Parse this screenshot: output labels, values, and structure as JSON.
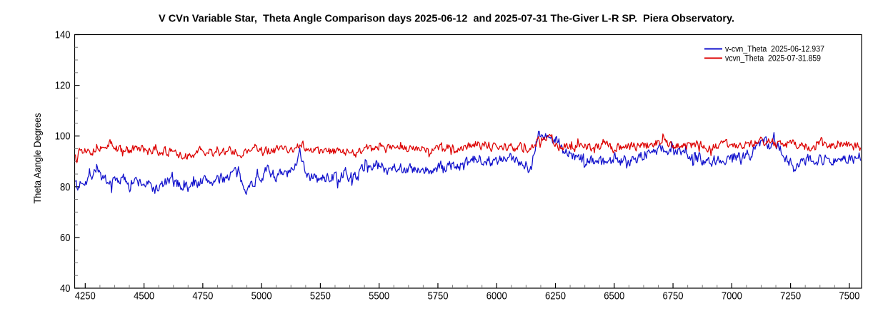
{
  "chart_data": {
    "type": "line",
    "title": "V CVn Variable Star,  Theta Angle Comparison days 2025-06-12  and 2025-07-31 The-Giver L-R SP.  Piera Observatory.",
    "ylabel": "Theta Aangle Degrees",
    "xlabel": "",
    "xlim": [
      4205,
      7552
    ],
    "ylim": [
      40,
      140
    ],
    "x_major_ticks": [
      4250,
      4500,
      4750,
      5000,
      5250,
      5500,
      5750,
      6000,
      6250,
      6500,
      6750,
      7000,
      7250,
      7500
    ],
    "y_major_ticks": [
      40,
      60,
      80,
      100,
      120,
      140
    ],
    "x_minor_step": 62.5,
    "y_minor_step": 5,
    "grid": false,
    "legend_position": "top-right",
    "axis_color": "#000000",
    "minor_tick_color": "#777777",
    "series": [
      {
        "name": "v-cvn_Theta  2025-06-12.937",
        "color": "#1111cc",
        "noise_amp": 2.0,
        "noise_phi": 0.45,
        "seed": 7,
        "x_start": 4208,
        "x_end": 7548,
        "x_step": 3.35,
        "trend": [
          [
            4208,
            84
          ],
          [
            4216,
            78
          ],
          [
            4232,
            82.5
          ],
          [
            4258,
            83
          ],
          [
            4280,
            85
          ],
          [
            4302,
            88.5
          ],
          [
            4318,
            84
          ],
          [
            4342,
            79.5
          ],
          [
            4365,
            82.5
          ],
          [
            4400,
            83
          ],
          [
            4460,
            82
          ],
          [
            4510,
            81
          ],
          [
            4555,
            79
          ],
          [
            4600,
            82
          ],
          [
            4650,
            81
          ],
          [
            4690,
            79.5
          ],
          [
            4730,
            82
          ],
          [
            4770,
            82.5
          ],
          [
            4810,
            82
          ],
          [
            4850,
            84
          ],
          [
            4885,
            86
          ],
          [
            4912,
            82
          ],
          [
            4945,
            79.5
          ],
          [
            4975,
            83
          ],
          [
            5005,
            85
          ],
          [
            5030,
            86.5
          ],
          [
            5065,
            84
          ],
          [
            5105,
            85
          ],
          [
            5140,
            86
          ],
          [
            5162,
            96.5
          ],
          [
            5180,
            87.5
          ],
          [
            5205,
            84
          ],
          [
            5245,
            82.5
          ],
          [
            5285,
            84
          ],
          [
            5330,
            83.5
          ],
          [
            5375,
            84
          ],
          [
            5415,
            85
          ],
          [
            5445,
            89.5
          ],
          [
            5470,
            88
          ],
          [
            5500,
            88.5
          ],
          [
            5530,
            87
          ],
          [
            5560,
            88.5
          ],
          [
            5590,
            87.5
          ],
          [
            5625,
            87
          ],
          [
            5680,
            85.5
          ],
          [
            5745,
            87
          ],
          [
            5805,
            88.5
          ],
          [
            5860,
            88
          ],
          [
            5910,
            90.5
          ],
          [
            5952,
            91.5
          ],
          [
            5990,
            89.5
          ],
          [
            6035,
            90.5
          ],
          [
            6080,
            91
          ],
          [
            6105,
            90.5
          ],
          [
            6125,
            89
          ],
          [
            6140,
            85.5
          ],
          [
            6152,
            90
          ],
          [
            6165,
            97
          ],
          [
            6180,
            102
          ],
          [
            6195,
            99
          ],
          [
            6210,
            100.5
          ],
          [
            6228,
            98
          ],
          [
            6248,
            99.5
          ],
          [
            6268,
            97
          ],
          [
            6290,
            94
          ],
          [
            6320,
            92.5
          ],
          [
            6355,
            90.5
          ],
          [
            6405,
            91
          ],
          [
            6455,
            89.5
          ],
          [
            6505,
            91
          ],
          [
            6555,
            90.5
          ],
          [
            6605,
            92
          ],
          [
            6655,
            93.5
          ],
          [
            6685,
            94.5
          ],
          [
            6710,
            95.5
          ],
          [
            6735,
            93.5
          ],
          [
            6780,
            93.5
          ],
          [
            6825,
            91.5
          ],
          [
            6870,
            91
          ],
          [
            6915,
            90.5
          ],
          [
            6960,
            91
          ],
          [
            7005,
            92
          ],
          [
            7045,
            91
          ],
          [
            7085,
            93.5
          ],
          [
            7110,
            95.5
          ],
          [
            7125,
            97
          ],
          [
            7142,
            100.5
          ],
          [
            7158,
            95.5
          ],
          [
            7175,
            98
          ],
          [
            7195,
            96.5
          ],
          [
            7218,
            92.5
          ],
          [
            7242,
            90
          ],
          [
            7263,
            87.5
          ],
          [
            7288,
            90.5
          ],
          [
            7330,
            91.5
          ],
          [
            7380,
            90.5
          ],
          [
            7430,
            91
          ],
          [
            7480,
            90.5
          ],
          [
            7520,
            91
          ],
          [
            7548,
            92.5
          ]
        ]
      },
      {
        "name": "vcvn_Theta  2025-07-31.859",
        "color": "#dd0000",
        "noise_amp": 1.55,
        "noise_phi": 0.45,
        "seed": 13,
        "x_start": 4208,
        "x_end": 7548,
        "x_step": 3.35,
        "trend": [
          [
            4208,
            92.5
          ],
          [
            4222,
            95.5
          ],
          [
            4242,
            94
          ],
          [
            4262,
            96
          ],
          [
            4282,
            94
          ],
          [
            4305,
            96.5
          ],
          [
            4330,
            94.5
          ],
          [
            4352,
            97.5
          ],
          [
            4375,
            95
          ],
          [
            4400,
            94.5
          ],
          [
            4440,
            94.5
          ],
          [
            4480,
            95
          ],
          [
            4520,
            93.5
          ],
          [
            4560,
            94.5
          ],
          [
            4610,
            93.5
          ],
          [
            4685,
            91.5
          ],
          [
            4720,
            94
          ],
          [
            4760,
            93.5
          ],
          [
            4805,
            93.5
          ],
          [
            4855,
            94
          ],
          [
            4905,
            93.5
          ],
          [
            4955,
            94.5
          ],
          [
            5005,
            94
          ],
          [
            5055,
            94.5
          ],
          [
            5105,
            94.5
          ],
          [
            5145,
            95
          ],
          [
            5168,
            98
          ],
          [
            5188,
            95
          ],
          [
            5215,
            94
          ],
          [
            5255,
            94
          ],
          [
            5305,
            93.5
          ],
          [
            5355,
            93.5
          ],
          [
            5405,
            93.5
          ],
          [
            5447,
            96
          ],
          [
            5475,
            94.5
          ],
          [
            5505,
            95.5
          ],
          [
            5555,
            94.5
          ],
          [
            5605,
            95
          ],
          [
            5655,
            95.5
          ],
          [
            5705,
            94.5
          ],
          [
            5755,
            95
          ],
          [
            5805,
            95.5
          ],
          [
            5855,
            95.5
          ],
          [
            5902,
            97
          ],
          [
            5955,
            96.5
          ],
          [
            6005,
            96
          ],
          [
            6055,
            95.5
          ],
          [
            6105,
            95.5
          ],
          [
            6150,
            95.5
          ],
          [
            6170,
            97.5
          ],
          [
            6195,
            100
          ],
          [
            6215,
            99.5
          ],
          [
            6235,
            98.5
          ],
          [
            6260,
            96.5
          ],
          [
            6305,
            95.5
          ],
          [
            6355,
            96
          ],
          [
            6405,
            95.5
          ],
          [
            6455,
            96
          ],
          [
            6505,
            95.5
          ],
          [
            6555,
            96
          ],
          [
            6605,
            96
          ],
          [
            6655,
            96.5
          ],
          [
            6705,
            98
          ],
          [
            6755,
            96.5
          ],
          [
            6805,
            96.5
          ],
          [
            6855,
            97
          ],
          [
            6905,
            96
          ],
          [
            6955,
            96.5
          ],
          [
            7005,
            96.5
          ],
          [
            7055,
            96.5
          ],
          [
            7105,
            97.5
          ],
          [
            7155,
            97.5
          ],
          [
            7205,
            96.5
          ],
          [
            7255,
            96.5
          ],
          [
            7305,
            96
          ],
          [
            7355,
            96.5
          ],
          [
            7405,
            96
          ],
          [
            7455,
            96.5
          ],
          [
            7505,
            96
          ],
          [
            7548,
            95.5
          ]
        ]
      }
    ]
  }
}
